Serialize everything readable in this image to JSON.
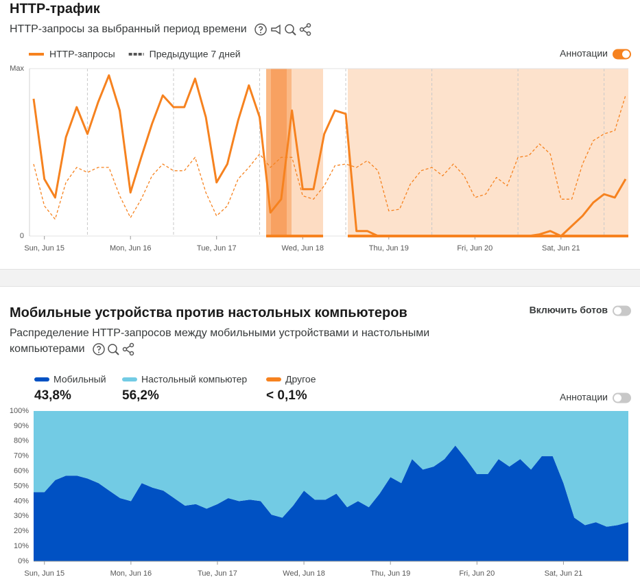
{
  "chart_data": [
    {
      "type": "line",
      "title": "HTTP-трафик",
      "subtitle": "HTTP-запросы за выбранный период времени",
      "annotations_label": "Аннотации",
      "annotations_on": true,
      "grid": true,
      "categories": [
        null,
        "Sun, Jun 15",
        null,
        null,
        null,
        null,
        null,
        null,
        null,
        "Mon, Jun 16",
        null,
        null,
        null,
        null,
        null,
        null,
        null,
        "Tue, Jun 17",
        null,
        null,
        null,
        null,
        null,
        null,
        null,
        "Wed, Jun 18",
        null,
        null,
        null,
        null,
        null,
        null,
        null,
        "Thu, Jun 19",
        null,
        null,
        null,
        null,
        null,
        null,
        null,
        "Fri, Jun 20",
        null,
        null,
        null,
        null,
        null,
        null,
        null,
        "Sat, Jun 21",
        null,
        null,
        null,
        null,
        null,
        null
      ],
      "ylim": [
        0,
        100
      ],
      "yticks": [
        0,
        {
          "value": 100,
          "label": "Max"
        }
      ],
      "series": [
        {
          "name": "HTTP-запросы",
          "color": "#f6821f",
          "legend_color": "#f6821f",
          "dashed": false,
          "values": [
            82,
            34,
            23,
            59,
            77,
            61,
            80,
            96,
            75,
            26,
            47,
            67,
            84,
            77,
            77,
            94,
            71,
            32,
            43,
            69,
            90,
            71,
            14,
            22,
            75,
            28,
            28,
            61,
            75,
            73,
            3,
            3,
            0,
            0,
            0,
            0,
            0,
            0,
            0,
            0,
            0,
            0,
            0,
            0,
            0,
            0,
            0,
            1,
            3,
            0,
            6,
            12,
            20,
            25,
            23,
            34
          ]
        },
        {
          "name": "Предыдущие 7 дней",
          "color": "#f6821f",
          "legend_color": "#555555",
          "dashed": true,
          "values": [
            43,
            18,
            10,
            32,
            41,
            38,
            41,
            41,
            24,
            11,
            22,
            36,
            43,
            39,
            39,
            47,
            26,
            12,
            18,
            34,
            41,
            49,
            41,
            47,
            47,
            24,
            22,
            30,
            42,
            43,
            41,
            45,
            39,
            15,
            16,
            31,
            39,
            41,
            36,
            43,
            36,
            23,
            25,
            35,
            30,
            47,
            48,
            55,
            49,
            22,
            22,
            43,
            57,
            61,
            63,
            84
          ]
        }
      ]
    },
    {
      "type": "stacked_area",
      "title": "Мобильные устройства против настольных компьютеров",
      "subtitle": "Распределение HTTP-запросов между мобильными устройствами и настольными компьютерами",
      "bots_label": "Включить ботов",
      "bots_on": false,
      "annotations_label": "Аннотации",
      "annotations_on": false,
      "categories": [
        null,
        "Sun, Jun 15",
        null,
        null,
        null,
        null,
        null,
        null,
        null,
        "Mon, Jun 16",
        null,
        null,
        null,
        null,
        null,
        null,
        null,
        "Tue, Jun 17",
        null,
        null,
        null,
        null,
        null,
        null,
        null,
        "Wed, Jun 18",
        null,
        null,
        null,
        null,
        null,
        null,
        null,
        "Thu, Jun 19",
        null,
        null,
        null,
        null,
        null,
        null,
        null,
        "Fri, Jun 20",
        null,
        null,
        null,
        null,
        null,
        null,
        null,
        "Sat, Jun 21",
        null,
        null,
        null,
        null,
        null,
        null
      ],
      "ylim": [
        0,
        100
      ],
      "yticks": [
        {
          "value": 0,
          "label": "0%"
        },
        {
          "value": 10,
          "label": "10%"
        },
        {
          "value": 20,
          "label": "20%"
        },
        {
          "value": 30,
          "label": "30%"
        },
        {
          "value": 40,
          "label": "40%"
        },
        {
          "value": 50,
          "label": "50%"
        },
        {
          "value": 60,
          "label": "60%"
        },
        {
          "value": 70,
          "label": "70%"
        },
        {
          "value": 80,
          "label": "80%"
        },
        {
          "value": 90,
          "label": "90%"
        },
        {
          "value": 100,
          "label": "100%"
        }
      ],
      "series": [
        {
          "name": "Мобильный",
          "color": "#0051c3",
          "share": {
            "value": 43.8,
            "label": "43,8%"
          },
          "values": [
            46,
            46,
            54,
            57,
            57,
            55,
            52,
            47,
            42,
            40,
            52,
            49,
            47,
            42,
            37,
            38,
            35,
            38,
            42,
            40,
            41,
            40,
            31,
            29,
            37,
            47,
            41,
            41,
            45,
            36,
            40,
            36,
            45,
            56,
            52,
            68,
            61,
            63,
            68,
            77,
            68,
            58,
            58,
            68,
            63,
            68,
            61,
            70,
            70,
            52,
            29,
            24,
            26,
            23,
            24,
            26
          ]
        },
        {
          "name": "Настольный компьютер",
          "color": "#72cbe4",
          "share": {
            "value": 56.2,
            "label": "56,2%"
          },
          "values": [
            54,
            54,
            46,
            43,
            43,
            45,
            48,
            53,
            58,
            60,
            48,
            51,
            53,
            58,
            63,
            62,
            65,
            62,
            58,
            60,
            59,
            60,
            69,
            71,
            63,
            53,
            59,
            59,
            55,
            64,
            60,
            64,
            55,
            44,
            48,
            32,
            39,
            37,
            32,
            23,
            32,
            42,
            42,
            32,
            37,
            32,
            39,
            30,
            30,
            48,
            71,
            76,
            74,
            77,
            76,
            74
          ]
        },
        {
          "name": "Другое",
          "color": "#f6821f",
          "share": {
            "value": 0.1,
            "label": "< 0,1%"
          },
          "values": [
            0,
            0,
            0,
            0,
            0,
            0,
            0,
            0,
            0,
            0,
            0,
            0,
            0,
            0,
            0,
            0,
            0,
            0,
            0,
            0,
            0,
            0,
            0,
            0,
            0,
            0,
            0,
            0,
            0,
            0,
            0,
            0,
            0,
            0,
            0,
            0,
            0,
            0,
            0,
            0,
            0,
            0,
            0,
            0,
            0,
            0,
            0,
            0,
            0,
            0,
            0,
            0,
            0,
            0,
            0,
            0
          ]
        }
      ]
    }
  ]
}
